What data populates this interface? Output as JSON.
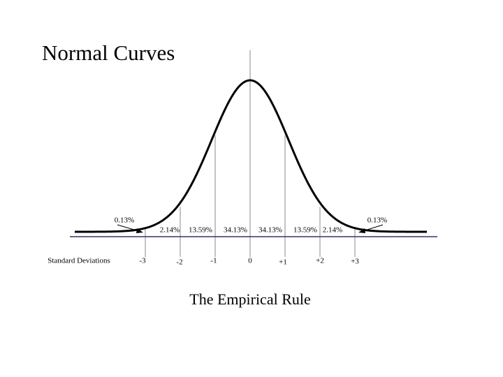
{
  "title": "Normal Curves",
  "tail_labels": [
    "0.13%",
    "0.13%"
  ],
  "area_labels": [
    "2.14%",
    "13.59%",
    "34.13%",
    "34.13%",
    "13.59%",
    "2.14%"
  ],
  "axis_label": "Standard Deviations",
  "sd_labels": [
    "-3",
    "-2",
    "-1",
    "0",
    "+1",
    "+2",
    "+3"
  ],
  "caption": "The Empirical Rule"
}
